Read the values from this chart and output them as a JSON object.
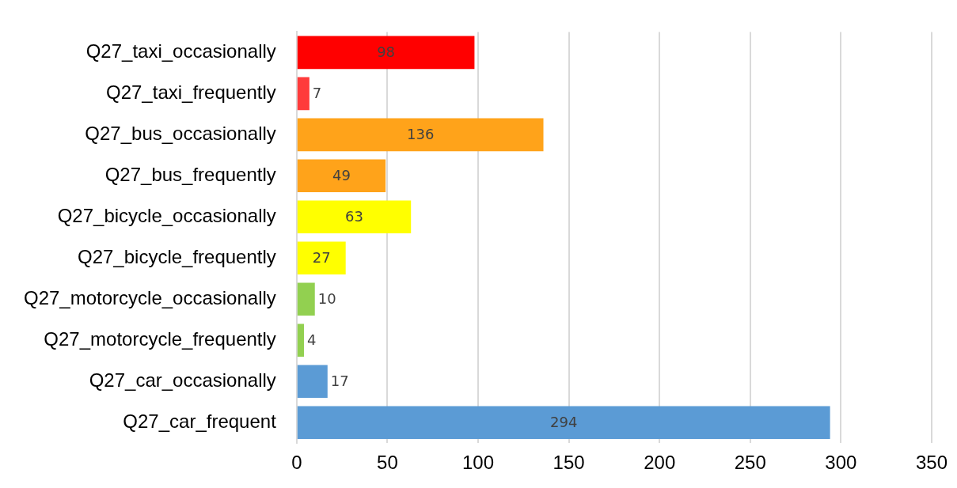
{
  "chart_data": {
    "type": "bar",
    "orientation": "horizontal",
    "categories": [
      "Q27_taxi_occasionally",
      "Q27_taxi_frequently",
      "Q27_bus_occasionally",
      "Q27_bus_frequently",
      "Q27_bicycle_occasionally",
      "Q27_bicycle_frequently",
      "Q27_motorcycle_occasionally",
      "Q27_motorcycle_frequently",
      "Q27_car_occasionally",
      "Q27_car_frequent"
    ],
    "values": [
      98,
      7,
      136,
      49,
      63,
      27,
      10,
      4,
      17,
      294
    ],
    "colors": [
      "#ff0000",
      "#ff3b3b",
      "#ffa31a",
      "#ffa31a",
      "#ffff00",
      "#ffff00",
      "#92d050",
      "#92d050",
      "#5b9bd5",
      "#5b9bd5"
    ],
    "xlim": [
      0,
      350
    ],
    "xticks": [
      0,
      50,
      100,
      150,
      200,
      250,
      300,
      350
    ],
    "grid": "x",
    "legend": false,
    "data_labels": true
  }
}
